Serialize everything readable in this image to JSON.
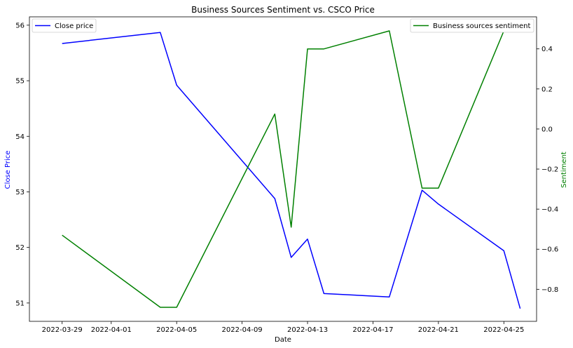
{
  "chart_data": {
    "type": "line",
    "title": "Business Sources Sentiment vs. CSCO Price",
    "xlabel": "Date",
    "xticks": [
      "2022-03-29",
      "2022-04-01",
      "2022-04-05",
      "2022-04-09",
      "2022-04-13",
      "2022-04-17",
      "2022-04-21",
      "2022-04-25"
    ],
    "xlim": [
      "2022-03-27",
      "2022-04-27"
    ],
    "grid": false,
    "left_axis": {
      "label": "Close Price",
      "label_color": "#0000ff",
      "ylim": [
        50.67,
        56.15
      ],
      "ticks": [
        51,
        52,
        53,
        54,
        55,
        56
      ],
      "tick_labels": [
        "51",
        "52",
        "53",
        "54",
        "55",
        "56"
      ]
    },
    "right_axis": {
      "label": "Sentiment",
      "label_color": "#008000",
      "ylim": [
        -0.96,
        0.56
      ],
      "ticks": [
        -0.8,
        -0.6,
        -0.4,
        -0.2,
        0.0,
        0.2,
        0.4
      ],
      "tick_labels": [
        "−0.8",
        "−0.6",
        "−0.4",
        "−0.2",
        "0.0",
        "0.2",
        "0.4"
      ]
    },
    "series": [
      {
        "name": "Close price",
        "axis": "left",
        "color": "#0000ff",
        "legend": "upper-left",
        "points": [
          {
            "x": "2022-03-29",
            "y": 55.67
          },
          {
            "x": "2022-04-04",
            "y": 55.87
          },
          {
            "x": "2022-04-05",
            "y": 54.92
          },
          {
            "x": "2022-04-11",
            "y": 52.88
          },
          {
            "x": "2022-04-12",
            "y": 51.82
          },
          {
            "x": "2022-04-13",
            "y": 52.15
          },
          {
            "x": "2022-04-14",
            "y": 51.17
          },
          {
            "x": "2022-04-18",
            "y": 51.11
          },
          {
            "x": "2022-04-20",
            "y": 53.03
          },
          {
            "x": "2022-04-21",
            "y": 52.78
          },
          {
            "x": "2022-04-25",
            "y": 51.94
          },
          {
            "x": "2022-04-26",
            "y": 50.9
          }
        ]
      },
      {
        "name": "Business sources sentiment",
        "axis": "right",
        "color": "#008000",
        "legend": "upper-right",
        "points": [
          {
            "x": "2022-03-29",
            "y": -0.53
          },
          {
            "x": "2022-04-04",
            "y": -0.89
          },
          {
            "x": "2022-04-05",
            "y": -0.89
          },
          {
            "x": "2022-04-11",
            "y": 0.075
          },
          {
            "x": "2022-04-12",
            "y": -0.49
          },
          {
            "x": "2022-04-13",
            "y": 0.4
          },
          {
            "x": "2022-04-14",
            "y": 0.4
          },
          {
            "x": "2022-04-18",
            "y": 0.49
          },
          {
            "x": "2022-04-20",
            "y": -0.295
          },
          {
            "x": "2022-04-21",
            "y": -0.295
          },
          {
            "x": "2022-04-25",
            "y": 0.49
          },
          {
            "x": "2022-04-26",
            "y": 0.49
          }
        ]
      }
    ]
  }
}
